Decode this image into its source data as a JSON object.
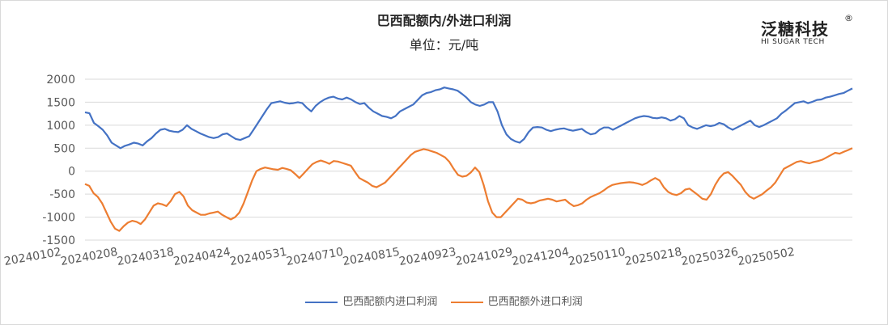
{
  "chart_data": {
    "type": "line",
    "title": "巴西配额内/外进口利润",
    "subtitle": "单位：元/吨",
    "ylim": [
      -1500,
      2000
    ],
    "yticks": [
      2000,
      1500,
      1000,
      500,
      0,
      -500,
      -1000,
      -1500
    ],
    "xtick_labels": [
      "20240102",
      "20240208",
      "20240318",
      "20240424",
      "20240531",
      "20240710",
      "20240815",
      "20240923",
      "20241029",
      "20241204",
      "20250110",
      "20250218",
      "20250326",
      "20250502"
    ],
    "xlabel": "",
    "ylabel": "",
    "series": [
      {
        "name": "巴西配额内进口利润",
        "color": "#4472C4",
        "values": [
          1280,
          1260,
          1050,
          980,
          900,
          780,
          620,
          560,
          500,
          550,
          580,
          620,
          600,
          560,
          650,
          720,
          820,
          900,
          920,
          880,
          860,
          850,
          900,
          1000,
          920,
          870,
          820,
          780,
          740,
          720,
          740,
          800,
          820,
          760,
          700,
          680,
          720,
          760,
          900,
          1050,
          1200,
          1350,
          1480,
          1500,
          1520,
          1490,
          1470,
          1480,
          1500,
          1480,
          1380,
          1300,
          1420,
          1500,
          1560,
          1600,
          1620,
          1580,
          1560,
          1600,
          1560,
          1500,
          1460,
          1480,
          1380,
          1300,
          1250,
          1200,
          1180,
          1150,
          1200,
          1300,
          1350,
          1400,
          1450,
          1550,
          1650,
          1700,
          1720,
          1760,
          1780,
          1820,
          1800,
          1780,
          1750,
          1680,
          1600,
          1500,
          1450,
          1420,
          1450,
          1500,
          1500,
          1300,
          1000,
          800,
          700,
          650,
          620,
          700,
          850,
          950,
          960,
          950,
          900,
          870,
          900,
          920,
          930,
          900,
          880,
          900,
          920,
          850,
          800,
          820,
          900,
          950,
          950,
          900,
          950,
          1000,
          1050,
          1100,
          1150,
          1180,
          1200,
          1190,
          1160,
          1150,
          1170,
          1150,
          1100,
          1130,
          1200,
          1150,
          1000,
          950,
          920,
          960,
          1000,
          980,
          1000,
          1050,
          1020,
          950,
          900,
          950,
          1000,
          1050,
          1100,
          1000,
          960,
          1000,
          1050,
          1100,
          1150,
          1250,
          1320,
          1400,
          1480,
          1500,
          1520,
          1480,
          1510,
          1550,
          1560,
          1600,
          1620,
          1650,
          1680,
          1700,
          1750,
          1800
        ]
      },
      {
        "name": "巴西配额外进口利润",
        "color": "#ED7D31",
        "values": [
          -280,
          -320,
          -480,
          -560,
          -700,
          -900,
          -1100,
          -1250,
          -1300,
          -1200,
          -1120,
          -1080,
          -1100,
          -1150,
          -1050,
          -900,
          -750,
          -700,
          -720,
          -760,
          -650,
          -500,
          -450,
          -550,
          -750,
          -850,
          -900,
          -950,
          -950,
          -920,
          -900,
          -880,
          -950,
          -1000,
          -1050,
          -1000,
          -900,
          -700,
          -450,
          -200,
          0,
          50,
          80,
          60,
          40,
          30,
          70,
          50,
          20,
          -60,
          -150,
          -50,
          50,
          150,
          200,
          230,
          200,
          160,
          220,
          210,
          180,
          150,
          120,
          -20,
          -150,
          -200,
          -250,
          -320,
          -350,
          -300,
          -250,
          -150,
          -50,
          50,
          150,
          250,
          350,
          420,
          450,
          480,
          460,
          430,
          400,
          350,
          300,
          200,
          50,
          -80,
          -120,
          -100,
          -30,
          80,
          -20,
          -300,
          -650,
          -900,
          -1000,
          -1000,
          -900,
          -800,
          -700,
          -600,
          -620,
          -680,
          -700,
          -680,
          -640,
          -620,
          -600,
          -620,
          -660,
          -640,
          -620,
          -700,
          -760,
          -740,
          -700,
          -620,
          -560,
          -520,
          -480,
          -420,
          -350,
          -300,
          -280,
          -260,
          -250,
          -240,
          -250,
          -270,
          -300,
          -260,
          -200,
          -150,
          -200,
          -350,
          -450,
          -500,
          -520,
          -480,
          -400,
          -380,
          -450,
          -520,
          -600,
          -620,
          -500,
          -300,
          -150,
          -50,
          -20,
          -100,
          -200,
          -300,
          -450,
          -550,
          -600,
          -550,
          -500,
          -420,
          -350,
          -250,
          -100,
          50,
          100,
          150,
          200,
          220,
          190,
          170,
          200,
          220,
          250,
          300,
          350,
          400,
          380,
          420,
          460,
          500
        ]
      }
    ]
  },
  "logo": {
    "main": "泛糖科技",
    "reg": "®",
    "sub": "HI SUGAR TECH"
  }
}
